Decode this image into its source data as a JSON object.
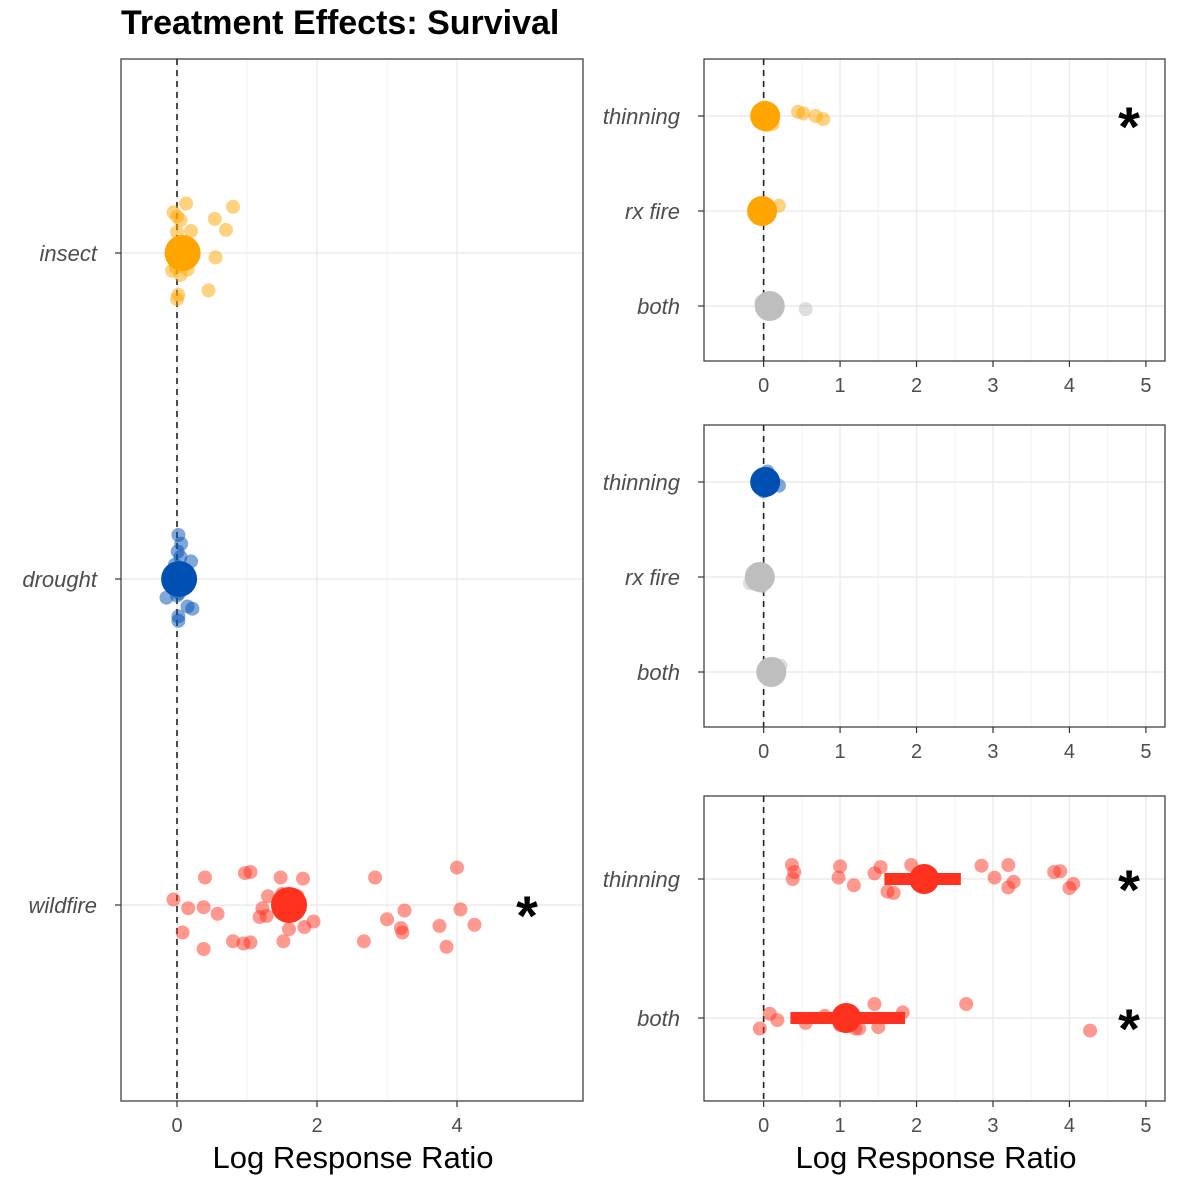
{
  "title": "Treatment Effects: Survival",
  "colors": {
    "insect": "#FFA500",
    "drought": "#0050B4",
    "wildfire": "#FF3220",
    "none": "#BEBEBE"
  },
  "chart_data": [
    {
      "type": "scatter",
      "panel": "left",
      "xlabel": "Log Response Ratio",
      "xlim": [
        -0.8,
        5.8
      ],
      "xticks": [
        0,
        2,
        4
      ],
      "categories": [
        "insect",
        "drought",
        "wildfire"
      ],
      "refline_x": 0,
      "grid": true,
      "series": [
        {
          "category": "insect",
          "color": "#FFA500",
          "mean": 0.08,
          "ci": [
            0.02,
            0.14
          ],
          "significant": false,
          "points": [
            [
              0.13,
              0.45
            ],
            [
              0.8,
              0.42
            ],
            [
              -0.05,
              0.37
            ],
            [
              0.54,
              0.31
            ],
            [
              0.0,
              0.33
            ],
            [
              0.05,
              0.3
            ],
            [
              0.2,
              0.2
            ],
            [
              0.7,
              0.21
            ],
            [
              0.0,
              0.19
            ],
            [
              0.1,
              0.1
            ],
            [
              0.15,
              0.05
            ],
            [
              0.55,
              -0.04
            ],
            [
              0.12,
              -0.1
            ],
            [
              -0.02,
              -0.13
            ],
            [
              0.15,
              -0.15
            ],
            [
              -0.07,
              -0.16
            ],
            [
              0.45,
              -0.34
            ],
            [
              0.0,
              -0.42
            ],
            [
              0.02,
              -0.38
            ],
            [
              0.05,
              -0.2
            ],
            [
              -0.02,
              -0.05
            ],
            [
              0.1,
              0.0
            ]
          ]
        },
        {
          "category": "drought",
          "color": "#0050B4",
          "mean": 0.03,
          "ci": [
            -0.02,
            0.08
          ],
          "significant": false,
          "points": [
            [
              0.02,
              0.4
            ],
            [
              0.06,
              0.32
            ],
            [
              0.01,
              0.25
            ],
            [
              0.05,
              0.2
            ],
            [
              0.2,
              0.16
            ],
            [
              -0.03,
              0.13
            ],
            [
              0.06,
              0.05
            ],
            [
              0.1,
              0.08
            ],
            [
              -0.15,
              -0.17
            ],
            [
              0.0,
              -0.15
            ],
            [
              0.03,
              -0.13
            ],
            [
              0.15,
              -0.25
            ],
            [
              0.22,
              -0.27
            ],
            [
              0.02,
              -0.34
            ],
            [
              0.02,
              -0.38
            ],
            [
              -0.05,
              -0.08
            ],
            [
              0.08,
              -0.05
            ]
          ]
        },
        {
          "category": "wildfire",
          "color": "#FF3220",
          "mean": 1.6,
          "ci": [
            1.4,
            1.85
          ],
          "significant": true,
          "points": [
            [
              4.0,
              0.34
            ],
            [
              1.05,
              0.3
            ],
            [
              0.97,
              0.29
            ],
            [
              0.4,
              0.25
            ],
            [
              1.48,
              0.25
            ],
            [
              1.8,
              0.24
            ],
            [
              2.83,
              0.25
            ],
            [
              -0.05,
              0.05
            ],
            [
              1.3,
              0.08
            ],
            [
              1.5,
              0.1
            ],
            [
              1.72,
              0.08
            ],
            [
              0.16,
              -0.03
            ],
            [
              0.38,
              -0.02
            ],
            [
              1.22,
              -0.03
            ],
            [
              1.68,
              -0.05
            ],
            [
              4.05,
              -0.04
            ],
            [
              3.25,
              -0.05
            ],
            [
              0.58,
              -0.08
            ],
            [
              1.28,
              -0.1
            ],
            [
              1.18,
              -0.11
            ],
            [
              1.95,
              -0.15
            ],
            [
              3.0,
              -0.13
            ],
            [
              4.25,
              -0.18
            ],
            [
              3.75,
              -0.19
            ],
            [
              1.82,
              -0.2
            ],
            [
              1.6,
              -0.22
            ],
            [
              3.2,
              -0.21
            ],
            [
              3.22,
              -0.25
            ],
            [
              0.08,
              -0.25
            ],
            [
              0.8,
              -0.33
            ],
            [
              0.95,
              -0.35
            ],
            [
              1.05,
              -0.34
            ],
            [
              1.52,
              -0.33
            ],
            [
              2.67,
              -0.33
            ],
            [
              3.85,
              -0.38
            ],
            [
              0.38,
              -0.4
            ]
          ]
        }
      ],
      "annotations": [
        {
          "text": "*",
          "category": "wildfire"
        }
      ]
    },
    {
      "type": "scatter",
      "panel": "top-right",
      "xlabel": "",
      "xlim": [
        -0.78,
        5.25
      ],
      "xticks": [
        0,
        1,
        2,
        3,
        4,
        5
      ],
      "categories": [
        "thinning",
        "rx fire",
        "both"
      ],
      "refline_x": 0,
      "grid": true,
      "series": [
        {
          "category": "thinning",
          "color": "#FFA500",
          "mean": 0.02,
          "ci": [
            -0.05,
            0.1
          ],
          "significant": true,
          "points": [
            [
              0.0,
              0.16
            ],
            [
              0.05,
              0.12
            ],
            [
              0.1,
              0.1
            ],
            [
              0.45,
              0.08
            ],
            [
              0.52,
              0.05
            ],
            [
              0.68,
              0.0
            ],
            [
              0.78,
              -0.06
            ],
            [
              -0.05,
              0.0
            ],
            [
              0.1,
              -0.02
            ],
            [
              0.0,
              -0.1
            ],
            [
              0.12,
              -0.15
            ],
            [
              0.05,
              -0.18
            ],
            [
              -0.03,
              0.05
            ]
          ]
        },
        {
          "category": "rx fire",
          "color": "#FFA500",
          "mean": -0.02,
          "ci": [
            -0.06,
            0.03
          ],
          "significant": false,
          "points": [
            [
              0.2,
              0.1
            ],
            [
              -0.05,
              -0.12
            ],
            [
              0.0,
              -0.05
            ]
          ]
        },
        {
          "category": "both",
          "color": "#BEBEBE",
          "mean": 0.08,
          "ci": [
            0.04,
            0.12
          ],
          "significant": false,
          "points": [
            [
              -0.03,
              0.08
            ],
            [
              0.05,
              0.06
            ],
            [
              0.1,
              -0.03
            ],
            [
              0.0,
              -0.05
            ],
            [
              0.55,
              -0.06
            ],
            [
              0.15,
              0.02
            ]
          ]
        }
      ],
      "annotations": [
        {
          "text": "*",
          "category": "thinning"
        }
      ]
    },
    {
      "type": "scatter",
      "panel": "middle-right",
      "xlabel": "",
      "xlim": [
        -0.78,
        5.25
      ],
      "xticks": [
        0,
        1,
        2,
        3,
        4,
        5
      ],
      "categories": [
        "thinning",
        "rx fire",
        "both"
      ],
      "refline_x": 0,
      "grid": true,
      "series": [
        {
          "category": "thinning",
          "color": "#0050B4",
          "mean": 0.02,
          "ci": [
            -0.02,
            0.06
          ],
          "significant": false,
          "points": [
            [
              0.05,
              0.2
            ],
            [
              0.0,
              0.12
            ],
            [
              0.2,
              -0.07
            ],
            [
              0.0,
              -0.18
            ],
            [
              -0.03,
              0.05
            ]
          ]
        },
        {
          "category": "rx fire",
          "color": "#BEBEBE",
          "mean": -0.05,
          "ci": [
            -0.1,
            0.0
          ],
          "significant": false,
          "points": [
            [
              -0.18,
              -0.12
            ],
            [
              -0.02,
              -0.18
            ]
          ]
        },
        {
          "category": "both",
          "color": "#BEBEBE",
          "mean": 0.1,
          "ci": [
            0.06,
            0.14
          ],
          "significant": false,
          "points": [
            [
              0.15,
              0.15
            ],
            [
              0.22,
              0.12
            ],
            [
              0.05,
              0.0
            ]
          ]
        }
      ],
      "annotations": []
    },
    {
      "type": "scatter",
      "panel": "bottom-right",
      "xlabel": "Log Response Ratio",
      "xlim": [
        -0.78,
        5.25
      ],
      "xticks": [
        0,
        1,
        2,
        3,
        4,
        5
      ],
      "categories": [
        "thinning",
        "both"
      ],
      "refline_x": 0,
      "grid": true,
      "series": [
        {
          "category": "thinning",
          "color": "#FF3220",
          "mean": 2.1,
          "ci": [
            1.58,
            2.58
          ],
          "significant": true,
          "points": [
            [
              0.37,
              0.2
            ],
            [
              0.4,
              0.1
            ],
            [
              0.38,
              0.0
            ],
            [
              1.0,
              0.18
            ],
            [
              1.53,
              0.17
            ],
            [
              1.93,
              0.2
            ],
            [
              2.85,
              0.19
            ],
            [
              3.2,
              0.2
            ],
            [
              3.8,
              0.1
            ],
            [
              3.88,
              0.11
            ],
            [
              0.98,
              0.02
            ],
            [
              1.45,
              0.08
            ],
            [
              3.02,
              0.02
            ],
            [
              3.27,
              -0.04
            ],
            [
              4.05,
              -0.07
            ],
            [
              1.18,
              -0.09
            ],
            [
              1.62,
              -0.18
            ],
            [
              1.7,
              -0.2
            ],
            [
              3.2,
              -0.12
            ],
            [
              4.0,
              -0.13
            ]
          ]
        },
        {
          "category": "both",
          "color": "#FF3220",
          "mean": 1.08,
          "ci": [
            0.35,
            1.85
          ],
          "significant": true,
          "points": [
            [
              0.08,
              0.06
            ],
            [
              0.18,
              -0.03
            ],
            [
              1.45,
              0.2
            ],
            [
              2.65,
              0.2
            ],
            [
              1.82,
              0.08
            ],
            [
              0.8,
              0.03
            ],
            [
              0.55,
              -0.07
            ],
            [
              1.5,
              -0.13
            ],
            [
              1.2,
              -0.15
            ],
            [
              1.25,
              -0.15
            ],
            [
              -0.05,
              -0.15
            ],
            [
              4.27,
              -0.18
            ],
            [
              1.0,
              -0.1
            ]
          ]
        }
      ],
      "annotations": [
        {
          "text": "*",
          "category": "thinning"
        },
        {
          "text": "*",
          "category": "both"
        }
      ]
    }
  ]
}
